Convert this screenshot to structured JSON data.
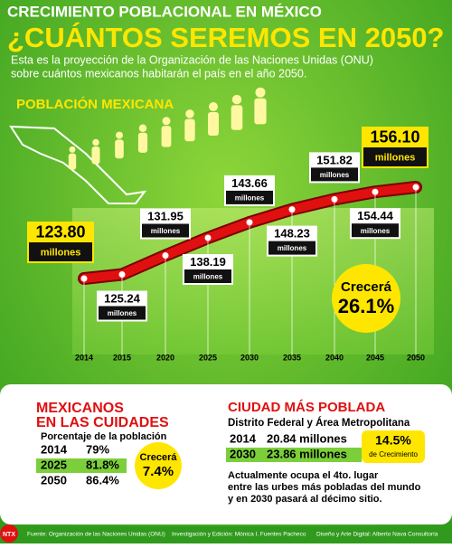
{
  "header": {
    "kicker": "CRECIMIENTO POBLACIONAL EN MÉXICO",
    "title": "¿CUÁNTOS SEREMOS EN 2050?",
    "subtitle_lines": [
      "Esta es la proyección de la Organización de las Naciones Unidas (ONU)",
      "sobre cuántos mexicanos habitarán el país en el año 2050."
    ]
  },
  "chart_data": {
    "type": "line",
    "title": "POBLACIÓN MEXICANA",
    "unit": "millones",
    "categories": [
      "2014",
      "2015",
      "2020",
      "2025",
      "2030",
      "2035",
      "2040",
      "2045",
      "2050"
    ],
    "values": [
      123.8,
      125.24,
      131.95,
      138.19,
      143.66,
      148.23,
      151.82,
      154.44,
      156.1
    ],
    "value_labels": [
      "123.80",
      "125.24",
      "131.95",
      "138.19",
      "143.66",
      "148.23",
      "151.82",
      "154.44",
      "156.10"
    ],
    "color": "#e01010"
  },
  "growth": {
    "label": "Crecerá",
    "value": "26.1%"
  },
  "urban": {
    "title_lines": [
      "MEXICANOS",
      "EN LAS CUIDADES"
    ],
    "subtitle": "Porcentaje de la población",
    "rows": [
      [
        "2014",
        "79%"
      ],
      [
        "2025",
        "81.8%"
      ],
      [
        "2050",
        "86.4%"
      ]
    ],
    "growth_label": "Crecerá",
    "growth_value": "7.4%"
  },
  "city": {
    "title": "CIUDAD MÁS POBLADA",
    "subtitle": "Distrito Federal y Área Metropolitana",
    "rows": [
      [
        "2014",
        "20.84 millones"
      ],
      [
        "2030",
        "23.86 millones"
      ]
    ],
    "badge_value": "14.5%",
    "badge_label": "de Crecimiento",
    "note_lines": [
      "Actualmente ocupa el 4to. lugar",
      "entre las urbes más pobladas del mundo",
      "y en 2030 pasará al décimo sitio."
    ]
  },
  "footer": {
    "logo": "NTX",
    "source": "Fuente: Organización de las Naciones Unidas (ONU)",
    "research": "Investigación y Edición: Mónica I. Fuentes Pacheco",
    "design": "Diseño y Arte Digital: Alberto Nava Consultoría"
  }
}
